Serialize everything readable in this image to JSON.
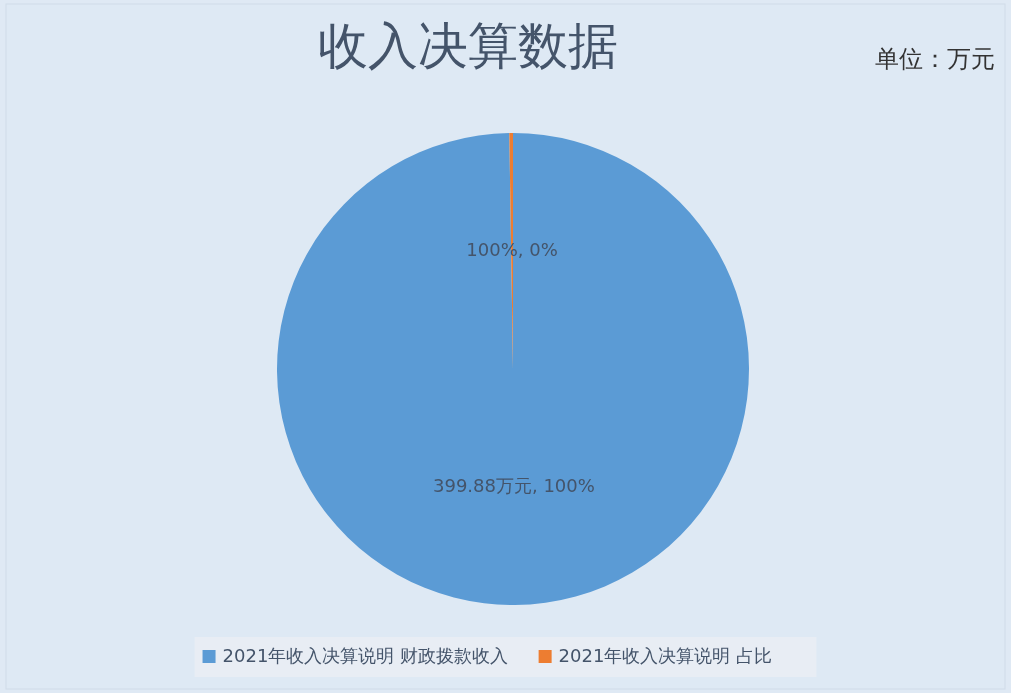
{
  "chart_data": {
    "type": "pie",
    "title": "收入决算数据",
    "annotations": [
      "单位：万元"
    ],
    "categories": [
      "2021年收入决算说明 财政拨款收入",
      "2021年收入决算说明 占比"
    ],
    "values": [
      399.88,
      1
    ],
    "colors": [
      "#5b9bd5",
      "#ed7d31"
    ],
    "value_labels": [
      "399.88万元, 100%",
      "100%, 0%"
    ],
    "legend": "bottom"
  }
}
